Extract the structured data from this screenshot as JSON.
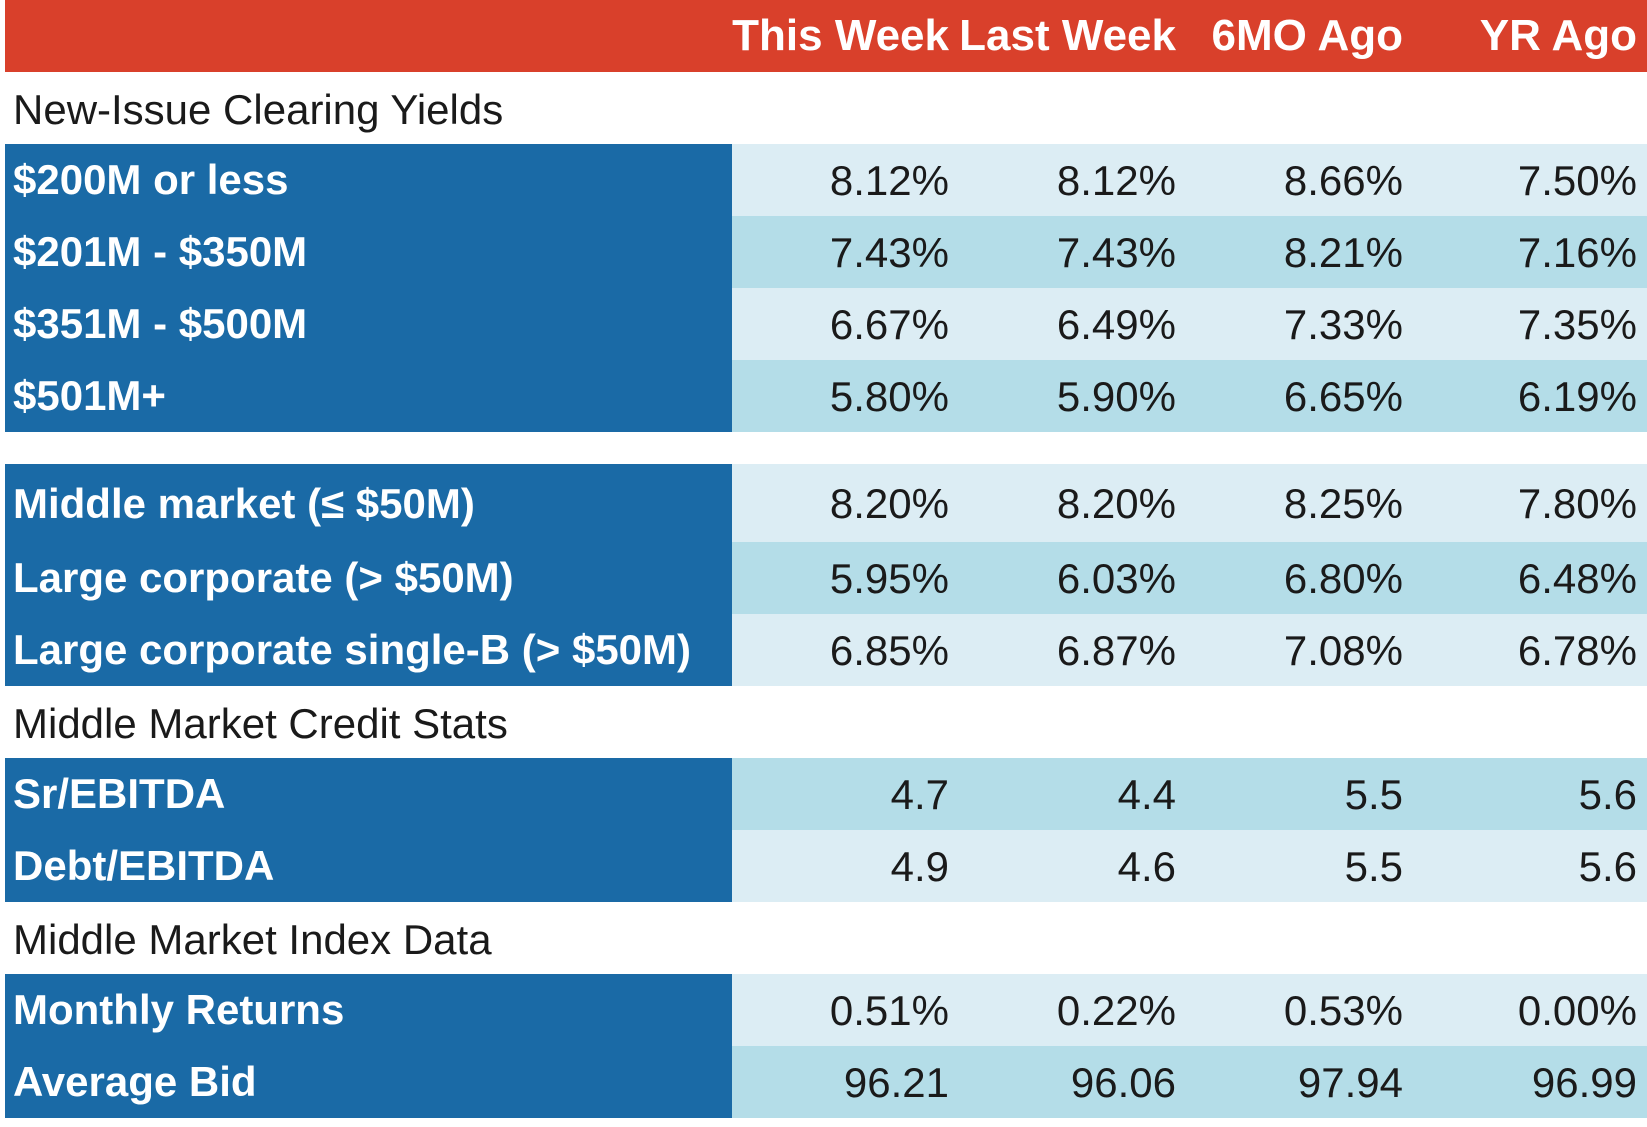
{
  "chart_data": {
    "type": "table",
    "columns": [
      "This Week",
      "Last Week",
      "6MO Ago",
      "YR Ago"
    ],
    "sections": [
      {
        "title": "New-Issue Clearing Yields",
        "rows": [
          {
            "label": "$200M or less",
            "values": [
              "8.12%",
              "8.12%",
              "8.66%",
              "7.50%"
            ]
          },
          {
            "label": "$201M - $350M",
            "values": [
              "7.43%",
              "7.43%",
              "8.21%",
              "7.16%"
            ]
          },
          {
            "label": "$351M - $500M",
            "values": [
              "6.67%",
              "6.49%",
              "7.33%",
              "7.35%"
            ]
          },
          {
            "label": "$501M+",
            "values": [
              "5.80%",
              "5.90%",
              "6.65%",
              "6.19%"
            ]
          }
        ]
      },
      {
        "title": "",
        "rows": [
          {
            "label": "Middle market (≤ $50M)",
            "values": [
              "8.20%",
              "8.20%",
              "8.25%",
              "7.80%"
            ]
          },
          {
            "label": "Large corporate (> $50M)",
            "values": [
              "5.95%",
              "6.03%",
              "6.80%",
              "6.48%"
            ]
          },
          {
            "label": "Large corporate single-B (> $50M)",
            "values": [
              "6.85%",
              "6.87%",
              "7.08%",
              "6.78%"
            ]
          }
        ]
      },
      {
        "title": "Middle Market Credit Stats",
        "rows": [
          {
            "label": "Sr/EBITDA",
            "values": [
              "4.7",
              "4.4",
              "5.5",
              "5.6"
            ]
          },
          {
            "label": "Debt/EBITDA",
            "values": [
              "4.9",
              "4.6",
              "5.5",
              "5.6"
            ]
          }
        ]
      },
      {
        "title": "Middle Market Index Data",
        "rows": [
          {
            "label": "Monthly Returns",
            "values": [
              "0.51%",
              "0.22%",
              "0.53%",
              "0.00%"
            ]
          },
          {
            "label": "Average Bid",
            "values": [
              "96.21",
              "96.06",
              "97.94",
              "96.99"
            ]
          }
        ]
      }
    ],
    "colors": {
      "header_bg": "#d9402b",
      "label_bg": "#1a6aa6",
      "row_light": "#dcedf4",
      "row_dark": "#b4dde8"
    }
  }
}
